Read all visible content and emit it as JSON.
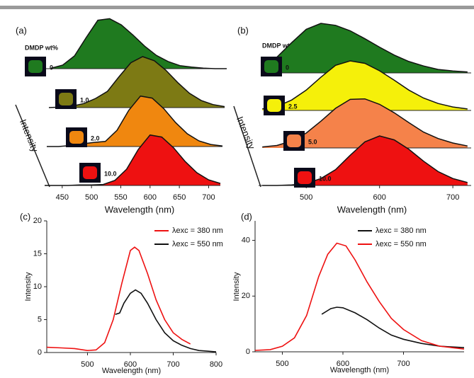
{
  "chart_data": [
    {
      "type": "waterfall",
      "label": "(a)",
      "legend_title": "DMDP wt%",
      "x_label": "Wavelength (nm)",
      "y_label": "Intensity",
      "x": [
        420,
        440,
        460,
        480,
        500,
        520,
        540,
        560,
        580,
        600,
        620,
        640,
        660,
        680,
        700,
        720
      ],
      "xlim": [
        420,
        720
      ],
      "xticks": [
        450,
        500,
        550,
        600,
        650,
        700
      ],
      "series": [
        {
          "name": "0",
          "color": "#1f7a1f",
          "values": [
            1,
            7,
            25,
            61,
            95,
            98,
            86,
            66,
            44,
            26,
            14,
            6,
            3,
            1,
            0,
            0
          ]
        },
        {
          "name": "1.0",
          "color": "#7d7a14",
          "values": [
            0,
            1,
            3,
            8,
            18,
            32,
            61,
            88,
            100,
            92,
            73,
            49,
            28,
            14,
            6,
            2
          ]
        },
        {
          "name": "2.0",
          "color": "#f0870f",
          "values": [
            0,
            0,
            2,
            5,
            8,
            10,
            32,
            71,
            99,
            95,
            74,
            47,
            25,
            11,
            4,
            1
          ]
        },
        {
          "name": "10.0",
          "color": "#ee1111",
          "values": [
            0,
            0,
            0,
            1,
            1,
            2,
            10,
            32,
            71,
            99,
            95,
            74,
            47,
            25,
            11,
            4
          ]
        }
      ]
    },
    {
      "type": "waterfall",
      "label": "(b)",
      "legend_title": "DMDP wt%",
      "x_label": "Wavelength (nm)",
      "y_label": "Intensity",
      "x": [
        440,
        460,
        480,
        500,
        520,
        540,
        560,
        580,
        600,
        620,
        640,
        660,
        680,
        700,
        720
      ],
      "xlim": [
        435,
        725
      ],
      "xticks": [
        500,
        600,
        700
      ],
      "series": [
        {
          "name": "0",
          "color": "#1f7a1f",
          "values": [
            14,
            32,
            61,
            88,
            100,
            96,
            85,
            69,
            52,
            36,
            23,
            14,
            7,
            4,
            2
          ]
        },
        {
          "name": "2.5",
          "color": "#f5f00a",
          "values": [
            3,
            8,
            21,
            41,
            67,
            91,
            100,
            95,
            80,
            61,
            41,
            25,
            14,
            7,
            3
          ]
        },
        {
          "name": "5.0",
          "color": "#f5824a",
          "values": [
            2,
            5,
            14,
            30,
            54,
            80,
            98,
            99,
            88,
            71,
            51,
            32,
            19,
            10,
            4
          ]
        },
        {
          "name": "10.0",
          "color": "#ee1111",
          "values": [
            0,
            0,
            1,
            4,
            14,
            32,
            61,
            88,
            100,
            92,
            73,
            49,
            28,
            14,
            6
          ]
        }
      ]
    },
    {
      "type": "line",
      "label": "(c)",
      "x_label": "Wavelength (nm)",
      "y_label": "Intensity",
      "xlim": [
        405,
        800
      ],
      "xticks": [
        500,
        600,
        700,
        800
      ],
      "ylim": [
        0,
        20
      ],
      "yticks": [
        0,
        5,
        10,
        15,
        20
      ],
      "series": [
        {
          "name": "λexc = 380 nm",
          "color": "#ee1111",
          "x": [
            405,
            440,
            470,
            500,
            520,
            540,
            560,
            580,
            600,
            610,
            620,
            640,
            660,
            680,
            700,
            720,
            740
          ],
          "values": [
            0.8,
            0.7,
            0.6,
            0.3,
            0.4,
            1.5,
            5,
            10.5,
            15.5,
            16,
            15.5,
            12,
            8,
            5,
            3,
            2,
            1.3
          ]
        },
        {
          "name": "λexc = 550 nm",
          "color": "#111111",
          "x": [
            565,
            575,
            585,
            600,
            612,
            625,
            640,
            660,
            680,
            700,
            720,
            740,
            760,
            780,
            800
          ],
          "values": [
            5.8,
            6,
            7.5,
            9,
            9.5,
            9,
            7.5,
            5,
            3,
            1.8,
            1.1,
            0.6,
            0.3,
            0.2,
            0.1
          ]
        }
      ]
    },
    {
      "type": "line",
      "label": "(d)",
      "x_label": "Wavelength (nm)",
      "y_label": "Intensity",
      "xlim": [
        455,
        800
      ],
      "xticks": [
        500,
        600,
        700
      ],
      "ylim": [
        0,
        47
      ],
      "yticks": [
        0,
        20,
        40
      ],
      "series": [
        {
          "name": "λexc = 380 nm",
          "color": "#111111",
          "x": [
            565,
            580,
            590,
            600,
            620,
            640,
            660,
            680,
            700,
            730,
            760,
            800
          ],
          "values": [
            13.5,
            15.5,
            16,
            15.8,
            14,
            11.5,
            8.5,
            6,
            4.5,
            3,
            2,
            1.5
          ]
        },
        {
          "name": "λexc = 550 nm",
          "color": "#ee1111",
          "x": [
            455,
            480,
            500,
            520,
            540,
            560,
            575,
            590,
            605,
            620,
            640,
            660,
            680,
            700,
            730,
            760,
            800
          ],
          "values": [
            0.5,
            0.8,
            2,
            5,
            13,
            27,
            35,
            39,
            38,
            33,
            25,
            18,
            12,
            8,
            4,
            2,
            1
          ]
        }
      ]
    }
  ]
}
